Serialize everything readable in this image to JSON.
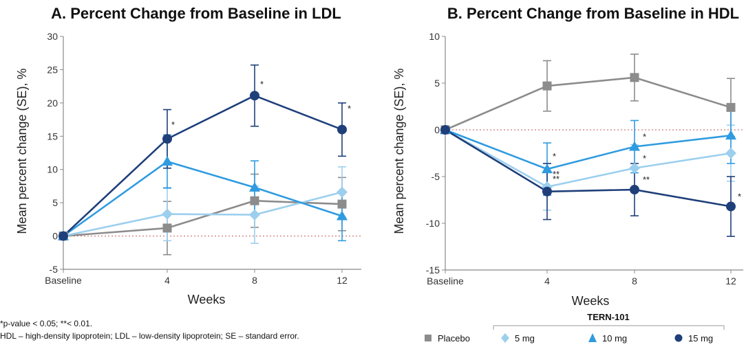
{
  "colors": {
    "placebo": "#8c8c8c",
    "mg5": "#9ccfee",
    "mg10": "#2f9be0",
    "mg15": "#1f3f7a",
    "axis": "#888888",
    "zero_line": "#c25a5a"
  },
  "footnotes": {
    "line1": "*p-value < 0.05; **< 0.01.",
    "line2": "HDL – high-density lipoprotein; LDL – low-density lipoprotein; SE – standard error."
  },
  "legend": {
    "group_title": "TERN-101",
    "items": [
      {
        "label": "Placebo",
        "marker": "square",
        "color_key": "placebo"
      },
      {
        "label": "5 mg",
        "marker": "diamond",
        "color_key": "mg5"
      },
      {
        "label": "10 mg",
        "marker": "triangle",
        "color_key": "mg10"
      },
      {
        "label": "15 mg",
        "marker": "circle",
        "color_key": "mg15"
      }
    ]
  },
  "chart_data": [
    {
      "type": "line",
      "title": "A. Percent Change from Baseline in LDL",
      "xlabel": "Weeks",
      "ylabel": "Mean percent change (SE), %",
      "categories": [
        "Baseline",
        "4",
        "8",
        "12"
      ],
      "ylim": [
        -5,
        30
      ],
      "yticks": [
        -5,
        0,
        5,
        10,
        15,
        20,
        25,
        30
      ],
      "series": [
        {
          "name": "Placebo",
          "color_key": "placebo",
          "marker": "square",
          "values": [
            0,
            1.2,
            5.3,
            4.8
          ],
          "errors": [
            0,
            4.0,
            4.0,
            4.0
          ],
          "sig": [
            "",
            "",
            "",
            ""
          ]
        },
        {
          "name": "5 mg",
          "color_key": "mg5",
          "marker": "diamond",
          "values": [
            0,
            3.3,
            3.2,
            6.6
          ],
          "errors": [
            0,
            4.0,
            4.3,
            3.8
          ],
          "sig": [
            "",
            "",
            "",
            ""
          ]
        },
        {
          "name": "10 mg",
          "color_key": "mg10",
          "marker": "triangle",
          "values": [
            0,
            11.2,
            7.3,
            3.0
          ],
          "errors": [
            0,
            4.0,
            4.0,
            3.7
          ],
          "sig": [
            "",
            "",
            "",
            ""
          ]
        },
        {
          "name": "15 mg",
          "color_key": "mg15",
          "marker": "circle",
          "values": [
            0,
            14.6,
            21.1,
            16.0
          ],
          "errors": [
            0,
            4.4,
            4.6,
            4.0
          ],
          "sig": [
            "",
            "*",
            "*",
            "*"
          ]
        }
      ]
    },
    {
      "type": "line",
      "title": "B. Percent Change from Baseline in HDL",
      "xlabel": "Weeks",
      "ylabel": "Mean percent change (SE), %",
      "categories": [
        "Baseline",
        "4",
        "8",
        "12"
      ],
      "ylim": [
        -15,
        10
      ],
      "yticks": [
        -15,
        -10,
        -5,
        0,
        5,
        10
      ],
      "series": [
        {
          "name": "Placebo",
          "color_key": "placebo",
          "marker": "square",
          "values": [
            0,
            4.7,
            5.6,
            2.4
          ],
          "errors": [
            0,
            2.7,
            2.5,
            3.1
          ],
          "sig": [
            "",
            "",
            "",
            ""
          ]
        },
        {
          "name": "5 mg",
          "color_key": "mg5",
          "marker": "diamond",
          "values": [
            0,
            -6.1,
            -4.1,
            -2.5
          ],
          "errors": [
            0,
            2.5,
            2.5,
            3.0
          ],
          "sig": [
            "",
            "**",
            "*",
            ""
          ]
        },
        {
          "name": "10 mg",
          "color_key": "mg10",
          "marker": "triangle",
          "values": [
            0,
            -4.2,
            -1.8,
            -0.6
          ],
          "errors": [
            0,
            2.8,
            2.8,
            3.0
          ],
          "sig": [
            "",
            "*",
            "*",
            ""
          ]
        },
        {
          "name": "15 mg",
          "color_key": "mg15",
          "marker": "circle",
          "values": [
            0,
            -6.6,
            -6.4,
            -8.2
          ],
          "errors": [
            0,
            3.0,
            2.8,
            3.2
          ],
          "sig": [
            "",
            "**",
            "**",
            "*"
          ]
        }
      ]
    }
  ]
}
